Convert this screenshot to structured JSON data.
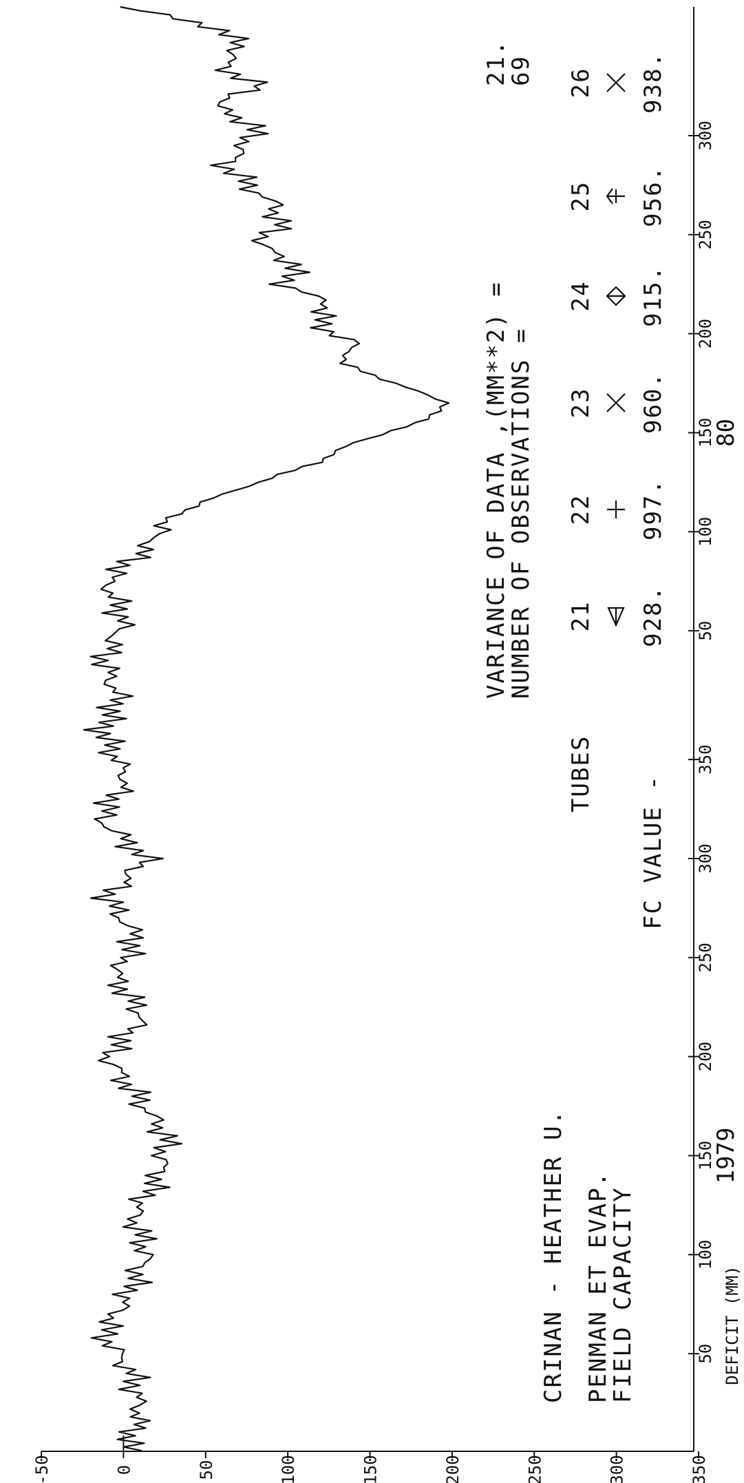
{
  "chart_data": {
    "type": "line",
    "title": "CRINAN - HEATHER U.",
    "subtitle_lines": [
      "PENMAN ET EVAP.",
      "FIELD CAPACITY"
    ],
    "ylabel": "DEFICIT (MM)",
    "ylim": [
      -50,
      350
    ],
    "y_ticks": [
      "-50",
      "0",
      "50",
      "100",
      "150",
      "200",
      "250",
      "300",
      "350"
    ],
    "x_segments": [
      {
        "year": "1979",
        "ticks": [
          "50",
          "100",
          "150",
          "200",
          "250",
          "300",
          "350"
        ]
      },
      {
        "year": "80",
        "ticks": [
          "50",
          "100",
          "150",
          "200",
          "250",
          "300"
        ]
      }
    ],
    "stats": {
      "variance_label": "VARIANCE OF DATA ,(MM**2) =",
      "variance_value": "21.",
      "obs_label": "NUMBER OF OBSERVATIONS =",
      "obs_value": "69"
    },
    "legend": {
      "tubes_label": "TUBES",
      "fc_label": "FC VALUE -",
      "tubes": [
        {
          "id": "21",
          "symbol": "triangle",
          "fc": "928."
        },
        {
          "id": "22",
          "symbol": "plus",
          "fc": "997."
        },
        {
          "id": "23",
          "symbol": "cross",
          "fc": "960."
        },
        {
          "id": "24",
          "symbol": "diamond",
          "fc": "915."
        },
        {
          "id": "25",
          "symbol": "arrow",
          "fc": "956."
        },
        {
          "id": "26",
          "symbol": "cross",
          "fc": "938."
        }
      ]
    },
    "series": [
      {
        "x": [
          1,
          20,
          40,
          60,
          80,
          100,
          120,
          140,
          160,
          180,
          200,
          220,
          240,
          260,
          280,
          300,
          320,
          340,
          365,
          380,
          400,
          420,
          440,
          460,
          470,
          480,
          490,
          500,
          510,
          520,
          530,
          540,
          550,
          560,
          570,
          580,
          590,
          600,
          610,
          620,
          630,
          640,
          650,
          660,
          670,
          680,
          690,
          700,
          710,
          720,
          730
        ],
        "y": [
          2,
          10,
          5,
          -12,
          3,
          14,
          6,
          22,
          26,
          8,
          -10,
          12,
          -5,
          8,
          -10,
          14,
          -14,
          2,
          -13,
          -3,
          -12,
          0,
          -10,
          18,
          24,
          48,
          82,
          118,
          140,
          180,
          198,
          165,
          133,
          140,
          118,
          125,
          98,
          105,
          82,
          95,
          92,
          76,
          62,
          74,
          80,
          55,
          82,
          60,
          72,
          56,
          -2
        ]
      }
    ]
  }
}
